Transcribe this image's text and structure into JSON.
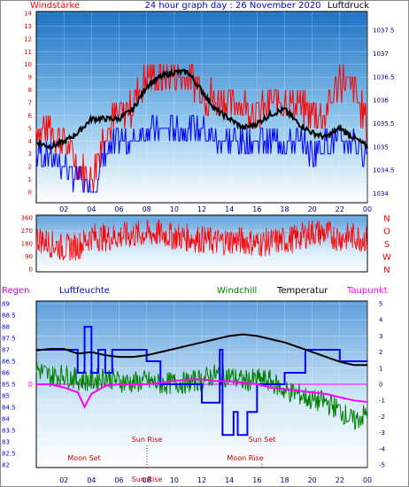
{
  "chart_data": [
    {
      "type": "line",
      "title": "24 hour graph day : 26 November 2020",
      "left_label": "Windstärke",
      "right_label": "Luftdruck",
      "y_left_ticks": [
        "0",
        "1",
        "2",
        "3",
        "4",
        "5",
        "6",
        "7",
        "8",
        "9",
        "10",
        "11",
        "12",
        "13",
        "14"
      ],
      "y_left_range": [
        0,
        14
      ],
      "y_right_ticks": [
        "1034",
        "1034.5",
        "1035",
        "1035.5",
        "1036",
        "1036.5",
        "1037",
        "1037.5"
      ],
      "y_right_range": [
        1033.8,
        1037.9
      ],
      "x_ticks": [
        "02",
        "04",
        "06",
        "08",
        "10",
        "12",
        "14",
        "16",
        "18",
        "20",
        "22",
        "00"
      ],
      "x_range": [
        0,
        24
      ],
      "grid": true,
      "series": [
        {
          "name": "Windstärke",
          "color": "#ff0000",
          "x": [
            0,
            1,
            2,
            3,
            4,
            5,
            6,
            7,
            8,
            9,
            10,
            11,
            12,
            13,
            14,
            15,
            16,
            17,
            18,
            19,
            20,
            21,
            22,
            23,
            24
          ],
          "values": [
            5,
            5,
            4,
            2,
            1,
            5,
            6,
            7,
            9,
            9,
            9,
            9,
            8,
            7,
            7,
            7,
            6,
            7,
            7,
            7,
            6,
            6,
            9,
            8,
            5
          ]
        },
        {
          "name": "Windstärke min",
          "color": "#0000ff",
          "x": [
            0,
            1,
            2,
            3,
            4,
            5,
            6,
            7,
            8,
            9,
            10,
            11,
            12,
            13,
            14,
            15,
            16,
            17,
            18,
            19,
            20,
            21,
            22,
            23,
            24
          ],
          "values": [
            3,
            3,
            2,
            1,
            0,
            3,
            4,
            4,
            5,
            5,
            5,
            5,
            5,
            4,
            4,
            4,
            4,
            4,
            4,
            4,
            3,
            4,
            4,
            4,
            3
          ]
        },
        {
          "name": "Luftdruck",
          "color": "#000000",
          "x": [
            0,
            1,
            2,
            3,
            4,
            5,
            6,
            7,
            8,
            9,
            10,
            11,
            12,
            13,
            14,
            15,
            16,
            17,
            18,
            19,
            20,
            21,
            22,
            23,
            24
          ],
          "values": [
            1035.1,
            1035.0,
            1035.1,
            1035.3,
            1035.6,
            1035.6,
            1035.6,
            1035.8,
            1036.3,
            1036.5,
            1036.6,
            1036.6,
            1036.2,
            1035.8,
            1035.6,
            1035.4,
            1035.5,
            1035.7,
            1035.8,
            1035.5,
            1035.3,
            1035.2,
            1035.4,
            1035.2,
            1035.0
          ]
        }
      ]
    },
    {
      "type": "line",
      "title": "",
      "y_left_ticks": [
        "0",
        "90",
        "180",
        "270",
        "360"
      ],
      "y_left_range": [
        0,
        360
      ],
      "compass_labels": [
        "N",
        "W",
        "S",
        "O",
        "N"
      ],
      "x_range": [
        0,
        24
      ],
      "grid": true,
      "series": [
        {
          "name": "Windrichtung",
          "color": "#ff0000",
          "x": [
            0,
            1,
            2,
            3,
            4,
            5,
            6,
            7,
            8,
            9,
            10,
            11,
            12,
            13,
            14,
            15,
            16,
            17,
            18,
            19,
            20,
            21,
            22,
            23,
            24
          ],
          "values": [
            220,
            180,
            150,
            160,
            230,
            220,
            230,
            240,
            250,
            250,
            230,
            220,
            210,
            190,
            200,
            200,
            180,
            190,
            200,
            220,
            260,
            250,
            220,
            230,
            210
          ]
        }
      ]
    },
    {
      "type": "line",
      "title": "",
      "top_labels": {
        "regen": "Regen",
        "luftfeuchte": "Luftfeuchte",
        "windchill": "Windchill",
        "temperatur": "Temperatur",
        "taupunkt": "Taupunkt"
      },
      "y_left_ticks": [
        "82",
        "82.5",
        "83",
        "83.5",
        "84",
        "84.5",
        "85",
        "85.5",
        "86",
        "86.5",
        "87",
        "87.5",
        "88",
        "88.5",
        "89"
      ],
      "y_left_range": [
        82,
        89
      ],
      "y_right_ticks": [
        "-5",
        "-4",
        "-3",
        "-2",
        "-1",
        "0",
        "1",
        "2",
        "3",
        "4",
        "5"
      ],
      "y_right_range": [
        -5,
        5
      ],
      "rain_zero_label": "0",
      "x_ticks": [
        "02",
        "04",
        "06",
        "08",
        "10",
        "12",
        "14",
        "16",
        "18",
        "20",
        "22",
        "00"
      ],
      "x_range": [
        0,
        24
      ],
      "annotations": [
        "Moon Set",
        "Sun Rise",
        "Moon Rise",
        "Sun Set",
        "Sun Rise"
      ],
      "grid": true,
      "series": [
        {
          "name": "Luftfeuchte",
          "color": "#0000ff",
          "x": [
            0,
            2,
            3,
            3.5,
            4,
            4.5,
            5,
            5.5,
            7.5,
            8,
            9,
            10,
            11,
            12,
            13,
            13.3,
            13.5,
            14,
            14.3,
            14.6,
            15,
            15.3,
            16,
            17,
            18,
            19,
            19.5,
            20,
            21,
            22,
            23,
            24
          ],
          "values": [
            87,
            87,
            86,
            88,
            86,
            87,
            86,
            87,
            87,
            86.5,
            85.5,
            85.5,
            85.5,
            84.7,
            84.7,
            87,
            83.3,
            83.3,
            84.3,
            83.3,
            83.3,
            84.3,
            85.5,
            85.5,
            86,
            86,
            87,
            87,
            87,
            86.5,
            86.5,
            86.5
          ]
        },
        {
          "name": "Temperatur",
          "color": "#000000",
          "x": [
            0,
            1,
            2,
            3,
            4,
            5,
            6,
            7,
            8,
            9,
            10,
            11,
            12,
            13,
            14,
            15,
            16,
            17,
            18,
            19,
            20,
            21,
            22,
            23,
            24
          ],
          "values": [
            2.1,
            2.2,
            2.2,
            1.9,
            2.0,
            1.8,
            1.7,
            1.7,
            1.8,
            2.0,
            2.2,
            2.4,
            2.6,
            2.8,
            3.0,
            3.1,
            3.0,
            2.8,
            2.6,
            2.3,
            2.0,
            1.7,
            1.4,
            1.2,
            1.2
          ]
        },
        {
          "name": "Windchill",
          "color": "#008000",
          "x": [
            0,
            1,
            2,
            3,
            4,
            5,
            6,
            7,
            8,
            9,
            10,
            11,
            12,
            13,
            14,
            15,
            16,
            17,
            18,
            19,
            20,
            21,
            22,
            23,
            24
          ],
          "values": [
            1.0,
            0.5,
            0.6,
            0.3,
            0.2,
            0.5,
            0.2,
            0.1,
            0.2,
            0.0,
            0.1,
            0.1,
            0.3,
            0.6,
            0.5,
            0.2,
            0.3,
            0.2,
            -0.4,
            -0.6,
            -1.0,
            -1.1,
            -1.6,
            -2.3,
            -1.8
          ]
        },
        {
          "name": "Taupunkt",
          "color": "#ff00ff",
          "x": [
            0,
            1,
            2,
            3,
            3.5,
            4,
            5,
            6,
            7,
            8,
            9,
            10,
            11,
            12,
            13,
            14,
            15,
            16,
            17,
            18,
            19,
            20,
            21,
            22,
            23,
            24
          ],
          "values": [
            0.0,
            0.0,
            -0.2,
            -0.5,
            -1.4,
            -0.6,
            -0.1,
            0.0,
            0.0,
            0.0,
            0.1,
            0.2,
            0.3,
            0.3,
            0.2,
            0.2,
            0.1,
            0.0,
            -0.2,
            -0.3,
            -0.4,
            -0.5,
            -0.6,
            -0.8,
            -1.0,
            -1.1
          ]
        }
      ]
    }
  ]
}
